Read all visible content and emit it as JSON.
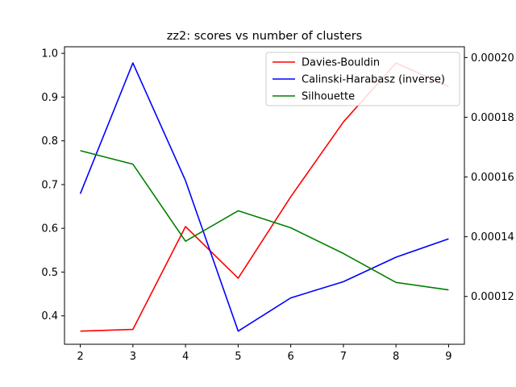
{
  "chart_data": {
    "type": "line",
    "title": "zz2: scores vs number of clusters",
    "xlabel": "",
    "ylabel": "",
    "x": [
      2,
      3,
      4,
      5,
      6,
      7,
      8,
      9
    ],
    "xlim": [
      1.7,
      9.3
    ],
    "ylim_left": [
      0.335,
      1.015
    ],
    "ylim_right": [
      0.000104,
      0.0002036
    ],
    "x_ticks": [
      "2",
      "3",
      "4",
      "5",
      "6",
      "7",
      "8",
      "9"
    ],
    "y_left_ticks": [
      "0.4",
      "0.5",
      "0.6",
      "0.7",
      "0.8",
      "0.9",
      "1.0"
    ],
    "y_right_ticks": [
      "0.00012",
      "0.00014",
      "0.00016",
      "0.00018",
      "0.00020"
    ],
    "legend_position": "top-right",
    "grid": false,
    "series": [
      {
        "name": "Davies-Bouldin",
        "color": "#ff0000",
        "axis": "left",
        "values": [
          0.365,
          0.369,
          0.604,
          0.486,
          0.672,
          0.843,
          0.978,
          0.924
        ]
      },
      {
        "name": "Calinski-Harabasz (inverse)",
        "color": "#0000ff",
        "axis": "left",
        "values": [
          0.679,
          0.978,
          0.709,
          0.365,
          0.441,
          0.478,
          0.534,
          0.576
        ]
      },
      {
        "name": "Silhouette",
        "color": "#008000",
        "axis": "right",
        "values": [
          0.0001688,
          0.0001643,
          0.0001385,
          0.0001487,
          0.000143,
          0.0001344,
          0.0001247,
          0.0001222
        ]
      }
    ]
  }
}
